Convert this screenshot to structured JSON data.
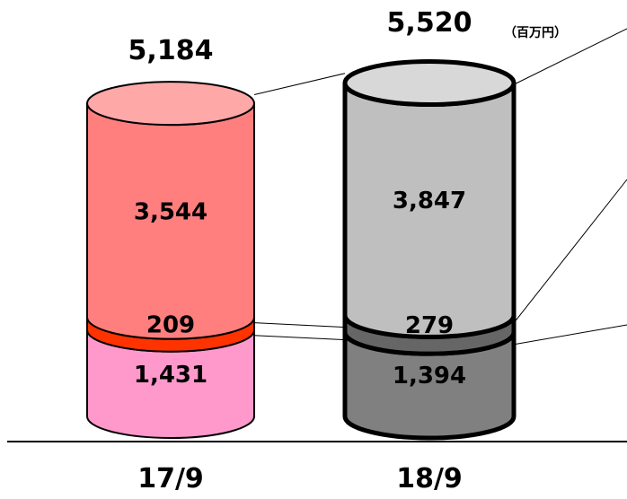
{
  "chart_data": {
    "type": "bar",
    "stacked": true,
    "style": "3d-cylinder",
    "unit": "（百万円）",
    "categories": [
      "17/9",
      "18/9"
    ],
    "totals": [
      5184,
      5520
    ],
    "total_labels": [
      "5,184",
      "5,520"
    ],
    "series": [
      {
        "values": [
          1431,
          1394
        ],
        "labels": [
          "1,431",
          "1,394"
        ],
        "colors": [
          "#FF99CC",
          "#808080"
        ]
      },
      {
        "values": [
          209,
          279
        ],
        "labels": [
          "209",
          "279"
        ],
        "colors": [
          "#FF3300",
          "#666666"
        ]
      },
      {
        "values": [
          3544,
          3847
        ],
        "labels": [
          "3,544",
          "3,847"
        ],
        "colors": [
          "#FF7F7F",
          "#BFBFBF"
        ]
      }
    ],
    "top_colors": [
      "#FFA8A8",
      "#D8D8D8"
    ],
    "grid": false,
    "legend": "none"
  }
}
